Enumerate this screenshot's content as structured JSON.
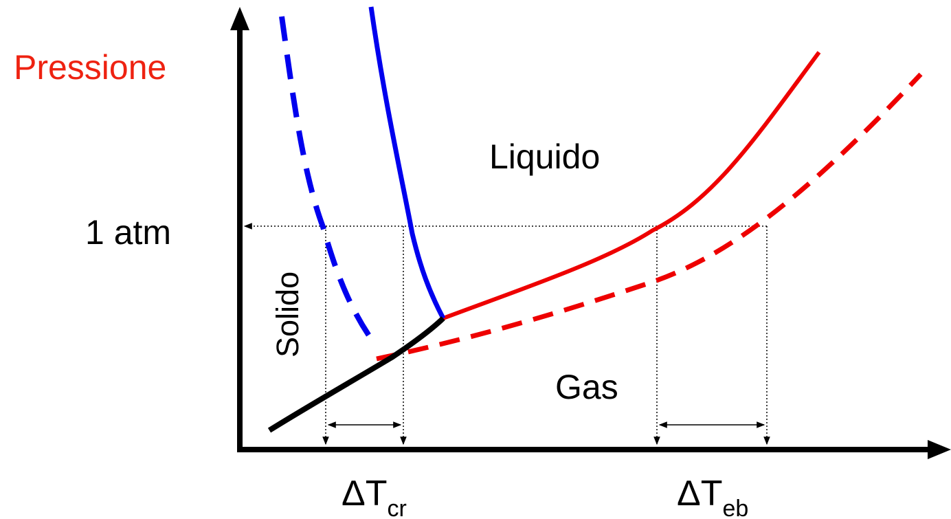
{
  "labels": {
    "y_axis": "Pressione",
    "pressure_ref": "1 atm",
    "liquid": "Liquido",
    "solid": "Solido",
    "gas": "Gas",
    "delta_cr_base": "ΔT",
    "delta_cr_sub": "cr",
    "delta_eb_base": "ΔT",
    "delta_eb_sub": "eb"
  },
  "colors": {
    "axis": "#000000",
    "pressure_label": "#ee2211",
    "fusion_curve": "#0000ee",
    "vaporization_curve": "#ee0000",
    "sublimation_curve": "#000000"
  },
  "curves": [
    {
      "name": "pure-solvent-fusion-curve",
      "color": "fusion_curve",
      "style": "solid"
    },
    {
      "name": "solution-fusion-curve",
      "color": "fusion_curve",
      "style": "dashed"
    },
    {
      "name": "pure-solvent-vaporization-curve",
      "color": "vaporization_curve",
      "style": "solid"
    },
    {
      "name": "solution-vaporization-curve",
      "color": "vaporization_curve",
      "style": "dashed"
    },
    {
      "name": "sublimation-curve",
      "color": "sublimation_curve",
      "style": "solid"
    }
  ]
}
